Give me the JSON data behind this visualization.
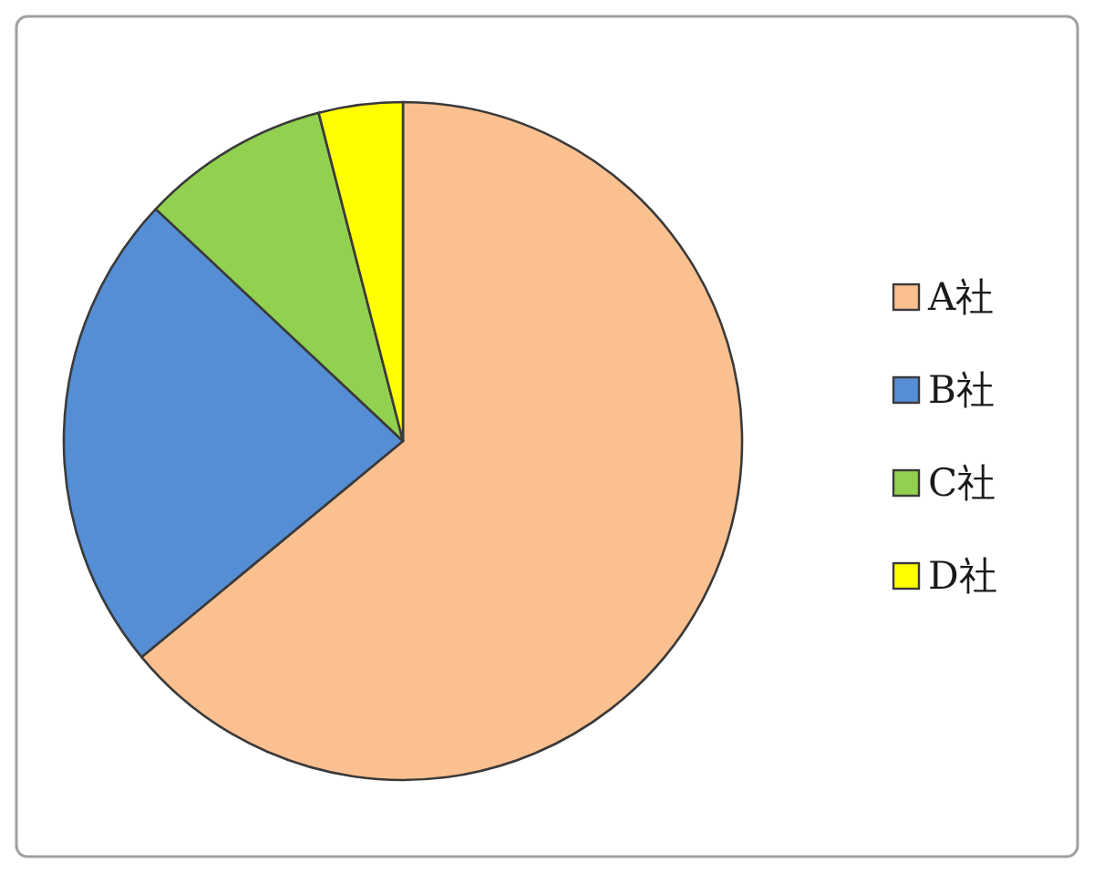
{
  "chart_data": {
    "type": "pie",
    "categories": [
      "A社",
      "B社",
      "C社",
      "D社"
    ],
    "values": [
      64,
      23,
      9,
      4
    ],
    "colors": [
      "#fac090",
      "#558ed5",
      "#92d050",
      "#ffff00"
    ],
    "legend": "right"
  }
}
